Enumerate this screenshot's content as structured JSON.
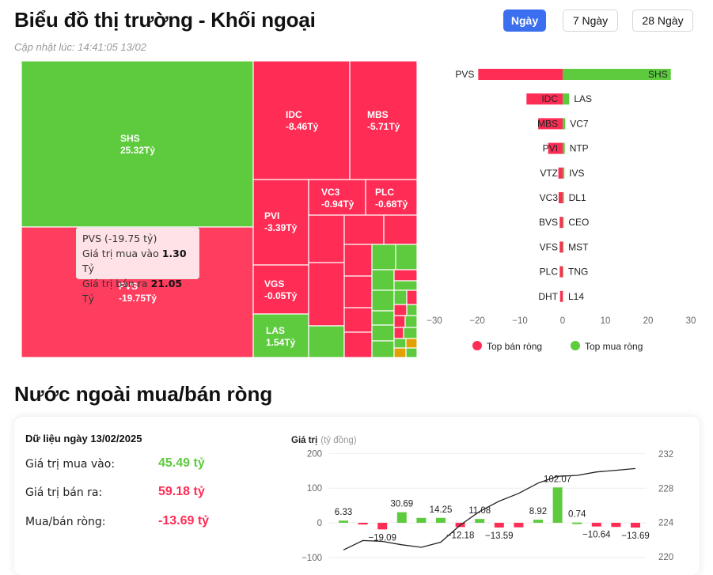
{
  "header": {
    "title": "Biểu đồ thị trường - Khối ngoại",
    "updated": "Cập nhật lúc: 14:41:05 13/02",
    "periods": [
      "Ngày",
      "7 Ngày",
      "28 Ngày"
    ],
    "active_period": "Ngày"
  },
  "colors": {
    "sell": "#ff2d55",
    "buy": "#5ecb3f",
    "accent": "#3b6ff0",
    "line": "#222222",
    "other": "#e2a100"
  },
  "treemap": {
    "labeled": [
      {
        "code": "SHS",
        "value": "25.32Tỷ"
      },
      {
        "code": "PVS",
        "value": "-19.75Tỷ"
      },
      {
        "code": "IDC",
        "value": "-8.46Tỷ"
      },
      {
        "code": "MBS",
        "value": "-5.71Tỷ"
      },
      {
        "code": "PVI",
        "value": "-3.39Tỷ"
      },
      {
        "code": "VC3",
        "value": "-0.94Tỷ"
      },
      {
        "code": "PLC",
        "value": "-0.68Tỷ"
      },
      {
        "code": "VGS",
        "value": "-0.05Tỷ"
      },
      {
        "code": "LAS",
        "value": "1.54Tỷ"
      }
    ],
    "tooltip": {
      "title": "PVS (-19.75 tỷ)",
      "buy_label": "Giá trị mua vào",
      "buy_value": "1.30",
      "buy_unit": "Tỷ",
      "sell_label": "Giá trị bán ra",
      "sell_value": "21.05",
      "sell_unit": "Tỷ"
    }
  },
  "chart_data": [
    {
      "type": "bar",
      "orientation": "horizontal",
      "sell_codes": [
        "PVS",
        "IDC",
        "MBS",
        "PVI",
        "VTZ",
        "VC3",
        "BVS",
        "VFS",
        "PLC",
        "DHT"
      ],
      "sell_values": [
        -19.75,
        -8.46,
        -5.71,
        -3.39,
        -1.0,
        -0.94,
        -0.7,
        -0.7,
        -0.68,
        -0.6
      ],
      "buy_codes": [
        "SHS",
        "LAS",
        "VC7",
        "NTP",
        "IVS",
        "DL1",
        "CEO",
        "MST",
        "TNG",
        "L14"
      ],
      "buy_values": [
        25.32,
        1.54,
        0.6,
        0.5,
        0.4,
        0.3,
        0.25,
        0.2,
        0.15,
        0.1
      ],
      "x_ticks": [
        -30,
        -20,
        -10,
        0,
        10,
        20,
        30
      ],
      "xlim": [
        -30,
        30
      ],
      "legend": [
        "Top bán ròng",
        "Top mua ròng"
      ],
      "legend_position": "bottom"
    },
    {
      "type": "bar",
      "title": "Nước ngoài mua/bán ròng",
      "ylabel": "Giá trị",
      "ylabel_unit": "(tỷ đồng)",
      "values": [
        6.33,
        -5.0,
        -19.09,
        30.69,
        14.25,
        14.25,
        -12.18,
        11.08,
        -13.59,
        -13.0,
        8.92,
        102.07,
        0.74,
        -10.64,
        -12.0,
        -13.69
      ],
      "labels": [
        "6.33",
        "",
        "-19.09",
        "30.69",
        "",
        "14.25",
        "-12.18",
        "11.08",
        "-13.59",
        "",
        "8.92",
        "102.07",
        "0.74",
        "-10.64",
        "",
        "-13.69"
      ],
      "y_ticks": [
        200,
        100,
        0,
        -100
      ],
      "ylim": [
        -100,
        200
      ],
      "y2_ticks": [
        232,
        228,
        224,
        220
      ],
      "y2lim": [
        220,
        232
      ],
      "line_values": [
        220.8,
        221.9,
        221.8,
        221.4,
        221.1,
        221.7,
        223.7,
        225.3,
        226.5,
        227.4,
        228.6,
        229.4,
        229.5,
        229.9,
        230.1,
        230.3
      ]
    }
  ],
  "summary": {
    "date_label": "Dữ liệu ngày 13/02/2025",
    "buy_label": "Giá trị mua vào:",
    "buy_value": "45.49 tỷ",
    "sell_label": "Giá trị bán ra:",
    "sell_value": "59.18 tỷ",
    "net_label": "Mua/bán ròng:",
    "net_value": "-13.69 tỷ"
  }
}
